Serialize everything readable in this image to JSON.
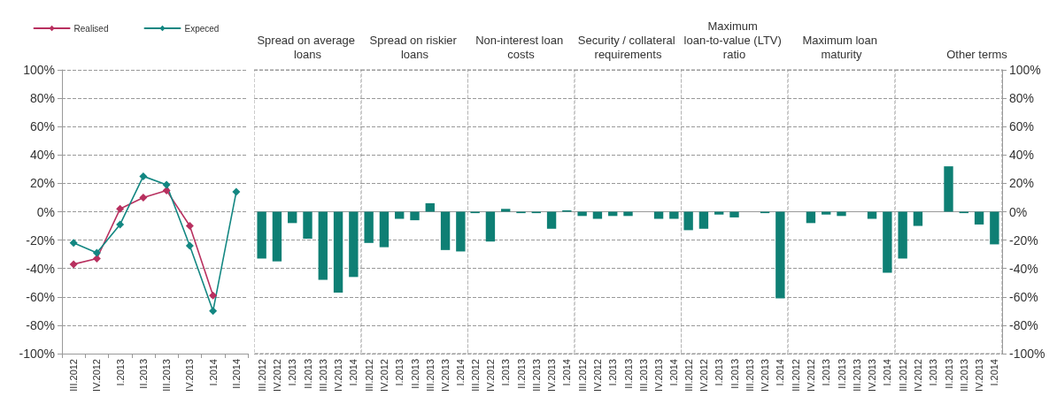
{
  "chart_data": [
    {
      "type": "line",
      "categories": [
        "III.2012",
        "IV.2012",
        "I.2013",
        "II.2013",
        "III.2013",
        "IV.2013",
        "I.2014",
        "II.2014"
      ],
      "series": [
        {
          "name": "Realised",
          "color": "#b8305f",
          "values": [
            -37,
            -33,
            2,
            10,
            15,
            -10,
            -59,
            null
          ]
        },
        {
          "name": "Expeced",
          "color": "#138782",
          "values": [
            -22,
            -29,
            -9,
            25,
            19,
            -24,
            -70,
            14
          ]
        }
      ],
      "ylim": [
        -100,
        100
      ],
      "yticks": [
        {
          "value": -100,
          "label": "-100%"
        },
        {
          "value": -80,
          "label": "-80%"
        },
        {
          "value": -60,
          "label": "-60%"
        },
        {
          "value": -40,
          "label": "-40%"
        },
        {
          "value": -20,
          "label": "-20%"
        },
        {
          "value": 0,
          "label": "0%"
        },
        {
          "value": 20,
          "label": "20%"
        },
        {
          "value": 40,
          "label": "40%"
        },
        {
          "value": 60,
          "label": "60%"
        },
        {
          "value": 80,
          "label": "80%"
        },
        {
          "value": 100,
          "label": "100%"
        }
      ],
      "grid": "y",
      "legend": "top",
      "marker": "diamond",
      "line_style": "solid"
    },
    {
      "type": "bar",
      "title": "Spread on average loans",
      "categories": [
        "III.2012",
        "IV.2012",
        "I.2013",
        "II.2013",
        "III.2013",
        "IV.2013",
        "I.2014"
      ],
      "values": [
        -33,
        -35,
        -8,
        -19,
        -48,
        -57,
        -46
      ],
      "color": "#0e7f74",
      "ylim": [
        -100,
        100
      ],
      "yticks": [
        -100,
        -80,
        -60,
        -40,
        -20,
        0,
        20,
        40,
        60,
        80,
        100
      ],
      "grid": true,
      "tick_labels": "x"
    },
    {
      "type": "bar",
      "title": "Spread on riskier loans",
      "categories": [
        "III.2012",
        "IV.2012",
        "I.2013",
        "II.2013",
        "III.2013",
        "IV.2013",
        "I.2014"
      ],
      "values": [
        -22,
        -25,
        -5,
        -6,
        6,
        -27,
        -28
      ],
      "color": "#0e7f74",
      "ylim": [
        -100,
        100
      ],
      "yticks": [
        -100,
        -80,
        -60,
        -40,
        -20,
        0,
        20,
        40,
        60,
        80,
        100
      ],
      "grid": true,
      "tick_labels": "x"
    },
    {
      "type": "bar",
      "title": "Non-interest loan costs",
      "categories": [
        "III.2012",
        "IV.2012",
        "I.2013",
        "II.2013",
        "III.2013",
        "IV.2013",
        "I.2014"
      ],
      "values": [
        -1,
        -21,
        2,
        -1,
        -1,
        -12,
        1
      ],
      "color": "#0e7f74",
      "ylim": [
        -100,
        100
      ],
      "yticks": [
        -100,
        -80,
        -60,
        -40,
        -20,
        0,
        20,
        40,
        60,
        80,
        100
      ],
      "grid": true,
      "tick_labels": "x"
    },
    {
      "type": "bar",
      "title": "Security / collateral requirements",
      "categories": [
        "III.2012",
        "IV.2012",
        "I.2013",
        "II.2013",
        "III.2013",
        "IV.2013",
        "I.2014"
      ],
      "values": [
        -3,
        -5,
        -3,
        -3,
        0,
        -5,
        -5
      ],
      "color": "#0e7f74",
      "ylim": [
        -100,
        100
      ],
      "yticks": [
        -100,
        -80,
        -60,
        -40,
        -20,
        0,
        20,
        40,
        60,
        80,
        100
      ],
      "grid": true,
      "tick_labels": "x"
    },
    {
      "type": "bar",
      "title": "Maximum loan-to-value (LTV) ratio",
      "categories": [
        "III.2012",
        "IV.2012",
        "I.2013",
        "II.2013",
        "III.2013",
        "IV.2013",
        "I.2014"
      ],
      "values": [
        -13,
        -12,
        -2,
        -4,
        0,
        -1,
        -61
      ],
      "color": "#0e7f74",
      "ylim": [
        -100,
        100
      ],
      "yticks": [
        -100,
        -80,
        -60,
        -40,
        -20,
        0,
        20,
        40,
        60,
        80,
        100
      ],
      "grid": true,
      "tick_labels": "x"
    },
    {
      "type": "bar",
      "title": "Maximum loan maturity",
      "categories": [
        "III.2012",
        "IV.2012",
        "I.2013",
        "II.2013",
        "III.2013",
        "IV.2013",
        "I.2014"
      ],
      "values": [
        0,
        -8,
        -2,
        -3,
        0,
        -5,
        -43
      ],
      "color": "#0e7f74",
      "ylim": [
        -100,
        100
      ],
      "yticks": [
        -100,
        -80,
        -60,
        -40,
        -20,
        0,
        20,
        40,
        60,
        80,
        100
      ],
      "grid": true,
      "tick_labels": "x"
    },
    {
      "type": "bar",
      "title": "Other terms",
      "categories": [
        "III.2012",
        "IV.2012",
        "I.2013",
        "II.2013",
        "III.2013",
        "IV.2013",
        "I.2014"
      ],
      "values": [
        -33,
        -10,
        0,
        32,
        -1,
        -9,
        -23
      ],
      "color": "#0e7f74",
      "ylim": [
        -100,
        100
      ],
      "yticks": [
        {
          "value": -100,
          "label": "-100%"
        },
        {
          "value": -80,
          "label": "-80%"
        },
        {
          "value": -60,
          "label": "-60%"
        },
        {
          "value": -40,
          "label": "-40%"
        },
        {
          "value": -20,
          "label": "-20%"
        },
        {
          "value": 0,
          "label": "0%"
        },
        {
          "value": 20,
          "label": "20%"
        },
        {
          "value": 40,
          "label": "40%"
        },
        {
          "value": 60,
          "label": "60%"
        },
        {
          "value": 80,
          "label": "80%"
        },
        {
          "value": 100,
          "label": "100%"
        }
      ],
      "grid": true
    }
  ]
}
